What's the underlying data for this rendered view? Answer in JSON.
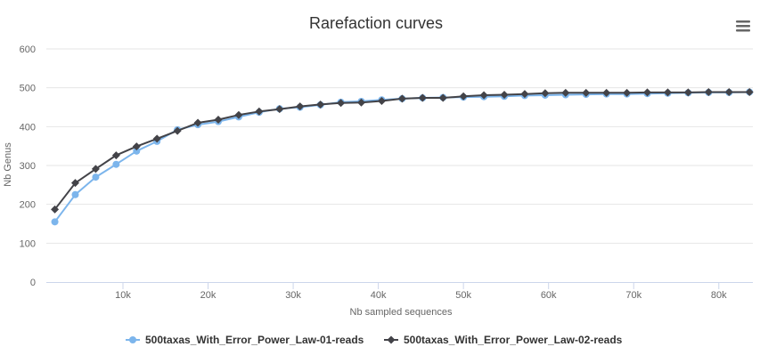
{
  "chart_data": {
    "type": "line",
    "title": "Rarefaction curves",
    "xlabel": "Nb sampled sequences",
    "ylabel": "Nb Genus",
    "xlim": [
      1000,
      84000
    ],
    "ylim": [
      0,
      600
    ],
    "x_ticks": [
      {
        "value": 10000,
        "label": "10k"
      },
      {
        "value": 20000,
        "label": "20k"
      },
      {
        "value": 30000,
        "label": "30k"
      },
      {
        "value": 40000,
        "label": "40k"
      },
      {
        "value": 50000,
        "label": "50k"
      },
      {
        "value": 60000,
        "label": "60k"
      },
      {
        "value": 70000,
        "label": "70k"
      },
      {
        "value": 80000,
        "label": "80k"
      }
    ],
    "y_ticks": [
      0,
      100,
      200,
      300,
      400,
      500,
      600
    ],
    "grid": true,
    "legend_position": "bottom-center",
    "x": [
      2000,
      4400,
      6800,
      9200,
      11600,
      14000,
      16400,
      18800,
      21200,
      23600,
      26000,
      28400,
      30800,
      33200,
      35600,
      38000,
      40400,
      42800,
      45200,
      47600,
      50000,
      52400,
      54800,
      57200,
      59600,
      62000,
      64400,
      66800,
      69200,
      71600,
      74000,
      76400,
      78800,
      81200,
      83600
    ],
    "series": [
      {
        "name": "500taxas_With_Error_Power_Law-01-reads",
        "color": "#7cb5ec",
        "marker": "circle",
        "values": [
          155,
          225,
          270,
          303,
          337,
          362,
          392,
          405,
          413,
          425,
          437,
          446,
          450,
          456,
          463,
          465,
          469,
          472,
          474,
          475,
          476,
          477,
          478,
          480,
          481,
          482,
          483,
          484,
          484,
          485,
          486,
          487,
          488,
          488,
          489
        ]
      },
      {
        "name": "500taxas_With_Error_Power_Law-02-reads",
        "color": "#434348",
        "marker": "diamond",
        "values": [
          187,
          255,
          291,
          326,
          349,
          369,
          389,
          410,
          418,
          430,
          439,
          445,
          452,
          457,
          461,
          462,
          466,
          472,
          474,
          474,
          478,
          481,
          482,
          484,
          486,
          487,
          487,
          487,
          487,
          488,
          488,
          488,
          489,
          489,
          489
        ]
      }
    ]
  },
  "ui": {
    "menu_icon": "hamburger-icon"
  }
}
